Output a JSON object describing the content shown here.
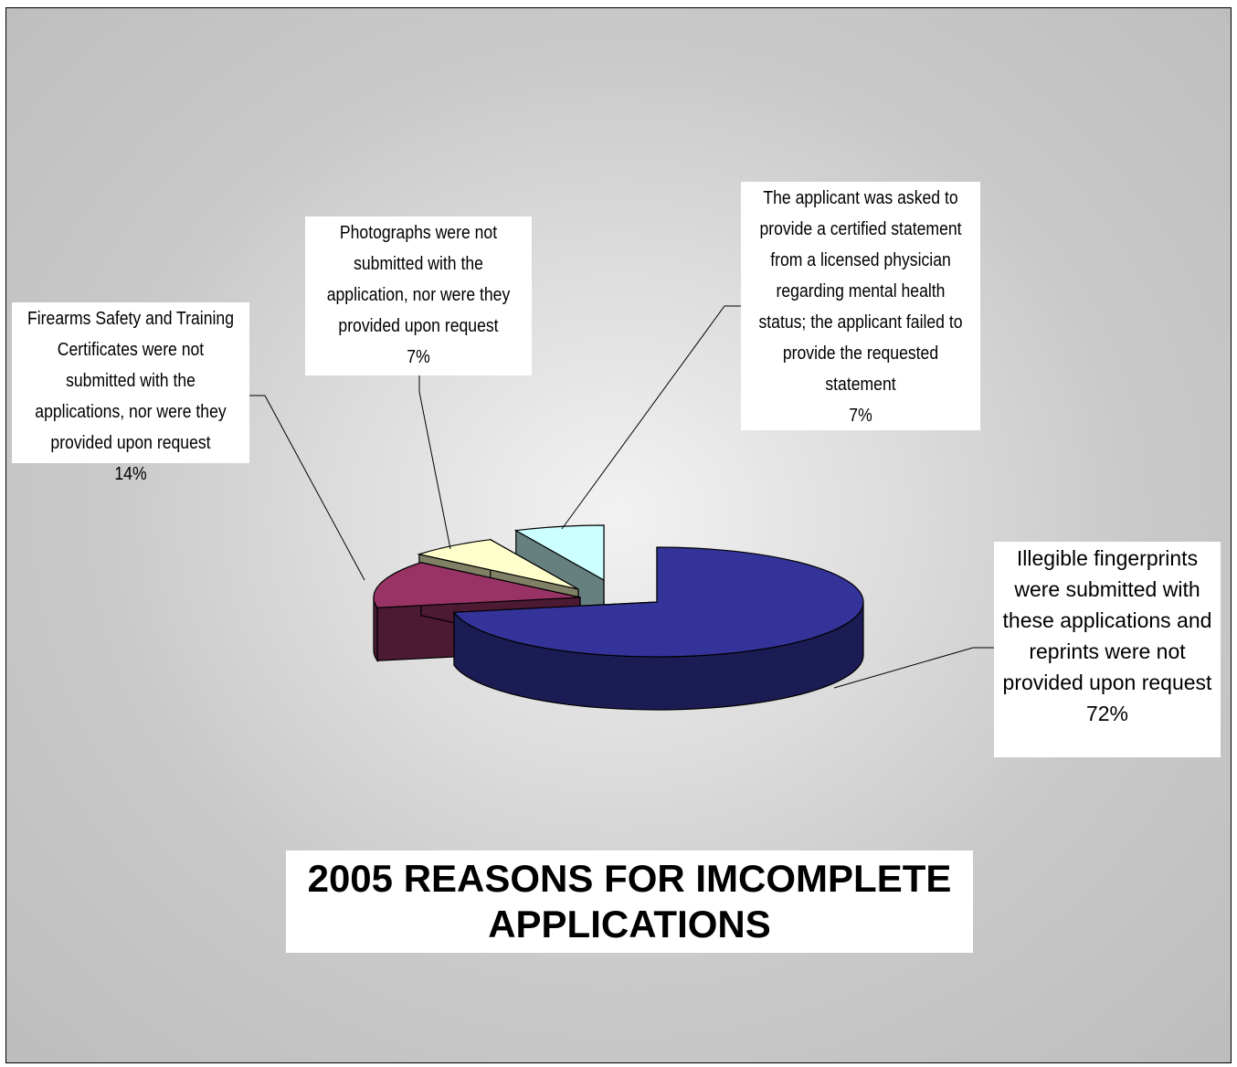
{
  "chart_data": {
    "type": "pie",
    "title": "2005 REASONS FOR IMCOMPLETE APPLICATIONS",
    "slices": [
      {
        "label": "Illegible fingerprints were submitted with these applications and reprints were not provided upon request",
        "value": 72,
        "value_label": "72%",
        "color": "#333399",
        "side_color": "#1c1c55"
      },
      {
        "label": "Firearms Safety and Training Certificates were not submitted with the applications, nor were they provided upon request",
        "value": 14,
        "value_label": "14%",
        "color": "#993366",
        "side_color": "#4d1a33"
      },
      {
        "label": "Photographs were not submitted with the application, nor were they provided upon request",
        "value": 7,
        "value_label": "7%",
        "color": "#ffffcc",
        "side_color": "#808066"
      },
      {
        "label": "The applicant was asked to provide a certified statement from a licensed physician regarding mental health status; the applicant failed to provide the requested statement",
        "value": 7,
        "value_label": "7%",
        "color": "#ccffff",
        "side_color": "#668080"
      }
    ],
    "legend": "none",
    "style": "3d-exploded-pie"
  }
}
